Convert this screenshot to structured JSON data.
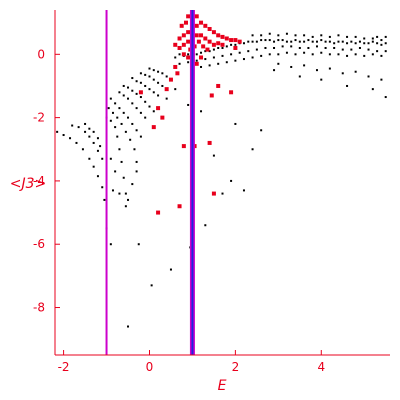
{
  "chart_data": {
    "type": "scatter",
    "title": "",
    "xlabel": "E",
    "ylabel": "<J3>",
    "xlim": [
      -2.2,
      5.6
    ],
    "ylim": [
      -9.5,
      1.4
    ],
    "xticks": [
      -2,
      0,
      2,
      4
    ],
    "yticks": [
      0,
      -2,
      -4,
      -6,
      -8
    ],
    "grid": false,
    "colors": {
      "axis": "#e8001c",
      "black_points": "#000000",
      "red_points": "#e8001c",
      "magenta_line": "#cc00cc",
      "blue_line": "#2222dd"
    },
    "vertical_lines": [
      {
        "x": -1.0,
        "color": "#cc00cc"
      },
      {
        "x": 1.0,
        "color": "#2222dd",
        "border_color": "#cc00cc"
      }
    ],
    "black_series": {
      "points": [
        [
          -2.15,
          -2.45
        ],
        [
          -2.0,
          -2.55
        ],
        [
          -1.85,
          -2.65
        ],
        [
          -1.7,
          -2.8
        ],
        [
          -1.55,
          -3.0
        ],
        [
          -1.4,
          -3.3
        ],
        [
          -1.3,
          -3.55
        ],
        [
          -1.2,
          -3.85
        ],
        [
          -1.1,
          -4.2
        ],
        [
          -1.05,
          -4.6
        ],
        [
          -1.0,
          -5.5
        ],
        [
          -1.8,
          -2.25
        ],
        [
          -1.65,
          -2.3
        ],
        [
          -1.5,
          -2.45
        ],
        [
          -1.4,
          -2.6
        ],
        [
          -1.3,
          -2.8
        ],
        [
          -1.2,
          -3.05
        ],
        [
          -1.1,
          -3.3
        ],
        [
          -1.5,
          -2.2
        ],
        [
          -1.4,
          -2.35
        ],
        [
          -1.3,
          -2.45
        ],
        [
          -1.2,
          -2.65
        ],
        [
          -1.15,
          -2.9
        ],
        [
          -1.0,
          -2.0
        ],
        [
          -0.9,
          -2.1
        ],
        [
          -0.8,
          -2.3
        ],
        [
          -0.75,
          -2.6
        ],
        [
          -0.7,
          -3.0
        ],
        [
          -0.65,
          -3.4
        ],
        [
          -0.6,
          -3.9
        ],
        [
          -0.55,
          -4.4
        ],
        [
          -0.5,
          -4.6
        ],
        [
          -0.95,
          -1.7
        ],
        [
          -0.85,
          -1.85
        ],
        [
          -0.75,
          -2.0
        ],
        [
          -0.65,
          -2.2
        ],
        [
          -0.55,
          -2.45
        ],
        [
          -0.45,
          -2.7
        ],
        [
          -0.35,
          -3.0
        ],
        [
          -0.3,
          -3.4
        ],
        [
          -0.9,
          -1.4
        ],
        [
          -0.8,
          -1.55
        ],
        [
          -0.7,
          -1.7
        ],
        [
          -0.6,
          -1.85
        ],
        [
          -0.5,
          -2.0
        ],
        [
          -0.4,
          -2.2
        ],
        [
          -0.3,
          -2.4
        ],
        [
          -0.2,
          -2.6
        ],
        [
          -0.7,
          -1.2
        ],
        [
          -0.6,
          -1.3
        ],
        [
          -0.5,
          -1.4
        ],
        [
          -0.4,
          -1.55
        ],
        [
          -0.3,
          -1.7
        ],
        [
          -0.2,
          -1.85
        ],
        [
          -0.1,
          -2.0
        ],
        [
          -0.6,
          -1.0
        ],
        [
          -0.5,
          -1.05
        ],
        [
          -0.4,
          -1.15
        ],
        [
          -0.3,
          -1.25
        ],
        [
          -0.2,
          -1.35
        ],
        [
          -0.1,
          -1.5
        ],
        [
          0.0,
          -1.65
        ],
        [
          0.1,
          -1.8
        ],
        [
          -0.4,
          -0.75
        ],
        [
          -0.3,
          -0.85
        ],
        [
          -0.2,
          -0.9
        ],
        [
          -0.1,
          -1.0
        ],
        [
          0.0,
          -1.1
        ],
        [
          0.1,
          -1.2
        ],
        [
          0.2,
          -1.3
        ],
        [
          -0.2,
          -0.6
        ],
        [
          -0.1,
          -0.65
        ],
        [
          0.0,
          -0.7
        ],
        [
          0.1,
          -0.8
        ],
        [
          0.2,
          -0.9
        ],
        [
          0.3,
          -1.0
        ],
        [
          0.0,
          -0.45
        ],
        [
          0.1,
          -0.5
        ],
        [
          0.2,
          -0.55
        ],
        [
          0.3,
          -0.6
        ],
        [
          0.4,
          -0.7
        ],
        [
          -0.9,
          -3.3
        ],
        [
          -0.8,
          -3.7
        ],
        [
          -0.85,
          -4.3
        ],
        [
          -0.7,
          -4.4
        ],
        [
          -0.55,
          -4.8
        ],
        [
          -0.4,
          -4.1
        ],
        [
          -0.3,
          -3.7
        ],
        [
          -0.9,
          -6.0
        ],
        [
          -0.25,
          -6.0
        ],
        [
          0.05,
          -7.3
        ],
        [
          0.5,
          -6.8
        ],
        [
          -0.5,
          -8.6
        ],
        [
          1.3,
          -5.4
        ],
        [
          1.5,
          -3.2
        ],
        [
          1.9,
          -4.0
        ],
        [
          2.2,
          -4.3
        ],
        [
          1.7,
          -4.4
        ],
        [
          2.4,
          -3.0
        ],
        [
          2.6,
          -2.4
        ],
        [
          2.0,
          -2.2
        ],
        [
          1.2,
          -1.8
        ],
        [
          0.9,
          -1.6
        ],
        [
          0.95,
          -6.1
        ],
        [
          0.4,
          -1.4
        ],
        [
          0.6,
          -1.1
        ],
        [
          0.6,
          -0.1
        ],
        [
          0.7,
          0.0
        ],
        [
          0.8,
          -0.05
        ],
        [
          0.9,
          0.0
        ],
        [
          1.0,
          0.05
        ],
        [
          1.1,
          0.0
        ],
        [
          1.2,
          0.05
        ],
        [
          1.3,
          0.1
        ],
        [
          1.4,
          0.1
        ],
        [
          1.5,
          0.15
        ],
        [
          1.6,
          0.2
        ],
        [
          1.7,
          0.2
        ],
        [
          1.8,
          0.25
        ],
        [
          1.9,
          0.3
        ],
        [
          2.0,
          0.3
        ],
        [
          2.1,
          0.35
        ],
        [
          2.2,
          0.35
        ],
        [
          2.3,
          0.4
        ],
        [
          2.4,
          0.4
        ],
        [
          2.5,
          0.4
        ],
        [
          2.6,
          0.45
        ],
        [
          2.7,
          0.45
        ],
        [
          2.8,
          0.45
        ],
        [
          2.9,
          0.4
        ],
        [
          3.0,
          0.45
        ],
        [
          3.1,
          0.45
        ],
        [
          3.2,
          0.4
        ],
        [
          3.3,
          0.4
        ],
        [
          3.4,
          0.45
        ],
        [
          3.5,
          0.4
        ],
        [
          3.6,
          0.4
        ],
        [
          3.7,
          0.45
        ],
        [
          3.8,
          0.4
        ],
        [
          3.9,
          0.4
        ],
        [
          4.0,
          0.45
        ],
        [
          4.1,
          0.4
        ],
        [
          4.2,
          0.4
        ],
        [
          4.3,
          0.35
        ],
        [
          4.4,
          0.4
        ],
        [
          4.5,
          0.4
        ],
        [
          4.6,
          0.35
        ],
        [
          4.7,
          0.4
        ],
        [
          4.8,
          0.35
        ],
        [
          4.9,
          0.4
        ],
        [
          5.0,
          0.35
        ],
        [
          5.1,
          0.35
        ],
        [
          5.2,
          0.4
        ],
        [
          5.3,
          0.35
        ],
        [
          5.4,
          0.3
        ],
        [
          5.5,
          0.35
        ],
        [
          0.7,
          -0.3
        ],
        [
          0.9,
          -0.25
        ],
        [
          1.1,
          -0.2
        ],
        [
          1.3,
          -0.15
        ],
        [
          1.5,
          -0.1
        ],
        [
          1.7,
          -0.05
        ],
        [
          1.9,
          0.0
        ],
        [
          2.1,
          0.05
        ],
        [
          2.3,
          0.1
        ],
        [
          2.5,
          0.15
        ],
        [
          2.7,
          0.2
        ],
        [
          2.9,
          0.2
        ],
        [
          3.1,
          0.25
        ],
        [
          3.3,
          0.25
        ],
        [
          3.5,
          0.2
        ],
        [
          3.7,
          0.2
        ],
        [
          3.9,
          0.25
        ],
        [
          4.1,
          0.2
        ],
        [
          4.3,
          0.2
        ],
        [
          4.5,
          0.15
        ],
        [
          4.7,
          0.15
        ],
        [
          4.9,
          0.2
        ],
        [
          5.1,
          0.15
        ],
        [
          5.3,
          0.1
        ],
        [
          5.5,
          0.1
        ],
        [
          1.2,
          -0.4
        ],
        [
          1.4,
          -0.35
        ],
        [
          1.6,
          -0.3
        ],
        [
          1.8,
          -0.25
        ],
        [
          2.0,
          -0.2
        ],
        [
          2.2,
          -0.15
        ],
        [
          2.4,
          -0.1
        ],
        [
          2.6,
          -0.05
        ],
        [
          2.8,
          0.0
        ],
        [
          3.0,
          0.0
        ],
        [
          3.2,
          0.05
        ],
        [
          3.4,
          0.0
        ],
        [
          3.6,
          0.05
        ],
        [
          3.8,
          0.0
        ],
        [
          4.0,
          0.05
        ],
        [
          4.2,
          0.0
        ],
        [
          4.4,
          0.0
        ],
        [
          4.6,
          -0.05
        ],
        [
          4.8,
          0.0
        ],
        [
          5.0,
          -0.05
        ],
        [
          5.2,
          0.0
        ],
        [
          5.4,
          -0.05
        ],
        [
          2.4,
          0.6
        ],
        [
          2.6,
          0.6
        ],
        [
          2.8,
          0.65
        ],
        [
          3.0,
          0.6
        ],
        [
          3.2,
          0.65
        ],
        [
          3.4,
          0.6
        ],
        [
          3.6,
          0.6
        ],
        [
          3.8,
          0.55
        ],
        [
          4.0,
          0.6
        ],
        [
          4.2,
          0.55
        ],
        [
          4.4,
          0.6
        ],
        [
          4.6,
          0.55
        ],
        [
          4.8,
          0.55
        ],
        [
          5.0,
          0.5
        ],
        [
          5.2,
          0.5
        ],
        [
          5.4,
          0.45
        ],
        [
          3.0,
          -0.3
        ],
        [
          3.3,
          -0.4
        ],
        [
          3.6,
          -0.35
        ],
        [
          3.9,
          -0.5
        ],
        [
          4.2,
          -0.45
        ],
        [
          4.5,
          -0.6
        ],
        [
          4.8,
          -0.55
        ],
        [
          5.1,
          -0.7
        ],
        [
          5.4,
          -0.8
        ],
        [
          4.0,
          -0.8
        ],
        [
          4.6,
          -1.0
        ],
        [
          5.2,
          -1.1
        ],
        [
          5.5,
          -1.35
        ],
        [
          3.5,
          -0.7
        ],
        [
          2.9,
          -0.5
        ],
        [
          5.5,
          0.55
        ],
        [
          5.3,
          0.55
        ]
      ]
    },
    "red_series": {
      "points": [
        [
          0.7,
          0.5
        ],
        [
          0.8,
          0.6
        ],
        [
          0.9,
          0.7
        ],
        [
          1.0,
          0.8
        ],
        [
          1.1,
          0.9
        ],
        [
          1.0,
          1.1
        ],
        [
          0.9,
          1.2
        ],
        [
          1.1,
          1.2
        ],
        [
          1.2,
          1.0
        ],
        [
          1.3,
          0.9
        ],
        [
          1.4,
          0.8
        ],
        [
          1.5,
          0.7
        ],
        [
          1.6,
          0.6
        ],
        [
          1.7,
          0.55
        ],
        [
          1.8,
          0.5
        ],
        [
          1.9,
          0.45
        ],
        [
          2.0,
          0.45
        ],
        [
          2.1,
          0.4
        ],
        [
          0.6,
          0.3
        ],
        [
          0.7,
          0.2
        ],
        [
          0.8,
          0.3
        ],
        [
          0.9,
          0.4
        ],
        [
          1.0,
          0.5
        ],
        [
          1.1,
          0.6
        ],
        [
          1.2,
          0.6
        ],
        [
          1.3,
          0.5
        ],
        [
          1.4,
          0.4
        ],
        [
          1.5,
          0.3
        ],
        [
          1.6,
          0.35
        ],
        [
          1.7,
          0.3
        ],
        [
          0.75,
          0.9
        ],
        [
          0.85,
          1.0
        ],
        [
          1.15,
          0.4
        ],
        [
          1.25,
          0.25
        ],
        [
          0.8,
          0.0
        ],
        [
          0.9,
          -0.1
        ],
        [
          1.0,
          -0.2
        ],
        [
          1.1,
          -0.3
        ],
        [
          0.95,
          0.15
        ],
        [
          1.05,
          0.25
        ],
        [
          0.6,
          -0.4
        ],
        [
          0.5,
          -0.8
        ],
        [
          0.4,
          -1.1
        ],
        [
          0.2,
          -1.7
        ],
        [
          0.1,
          -2.3
        ],
        [
          0.3,
          -2.0
        ],
        [
          0.65,
          -0.6
        ],
        [
          -0.2,
          -1.2
        ],
        [
          1.45,
          -1.3
        ],
        [
          1.05,
          -2.9
        ],
        [
          0.8,
          -2.9
        ],
        [
          0.7,
          -4.8
        ],
        [
          0.2,
          -5.0
        ],
        [
          1.5,
          -4.4
        ],
        [
          1.4,
          -2.8
        ],
        [
          1.9,
          -1.2
        ],
        [
          1.6,
          -1.0
        ],
        [
          1.2,
          -0.1
        ],
        [
          1.35,
          0.15
        ],
        [
          2.0,
          0.2
        ]
      ]
    }
  }
}
